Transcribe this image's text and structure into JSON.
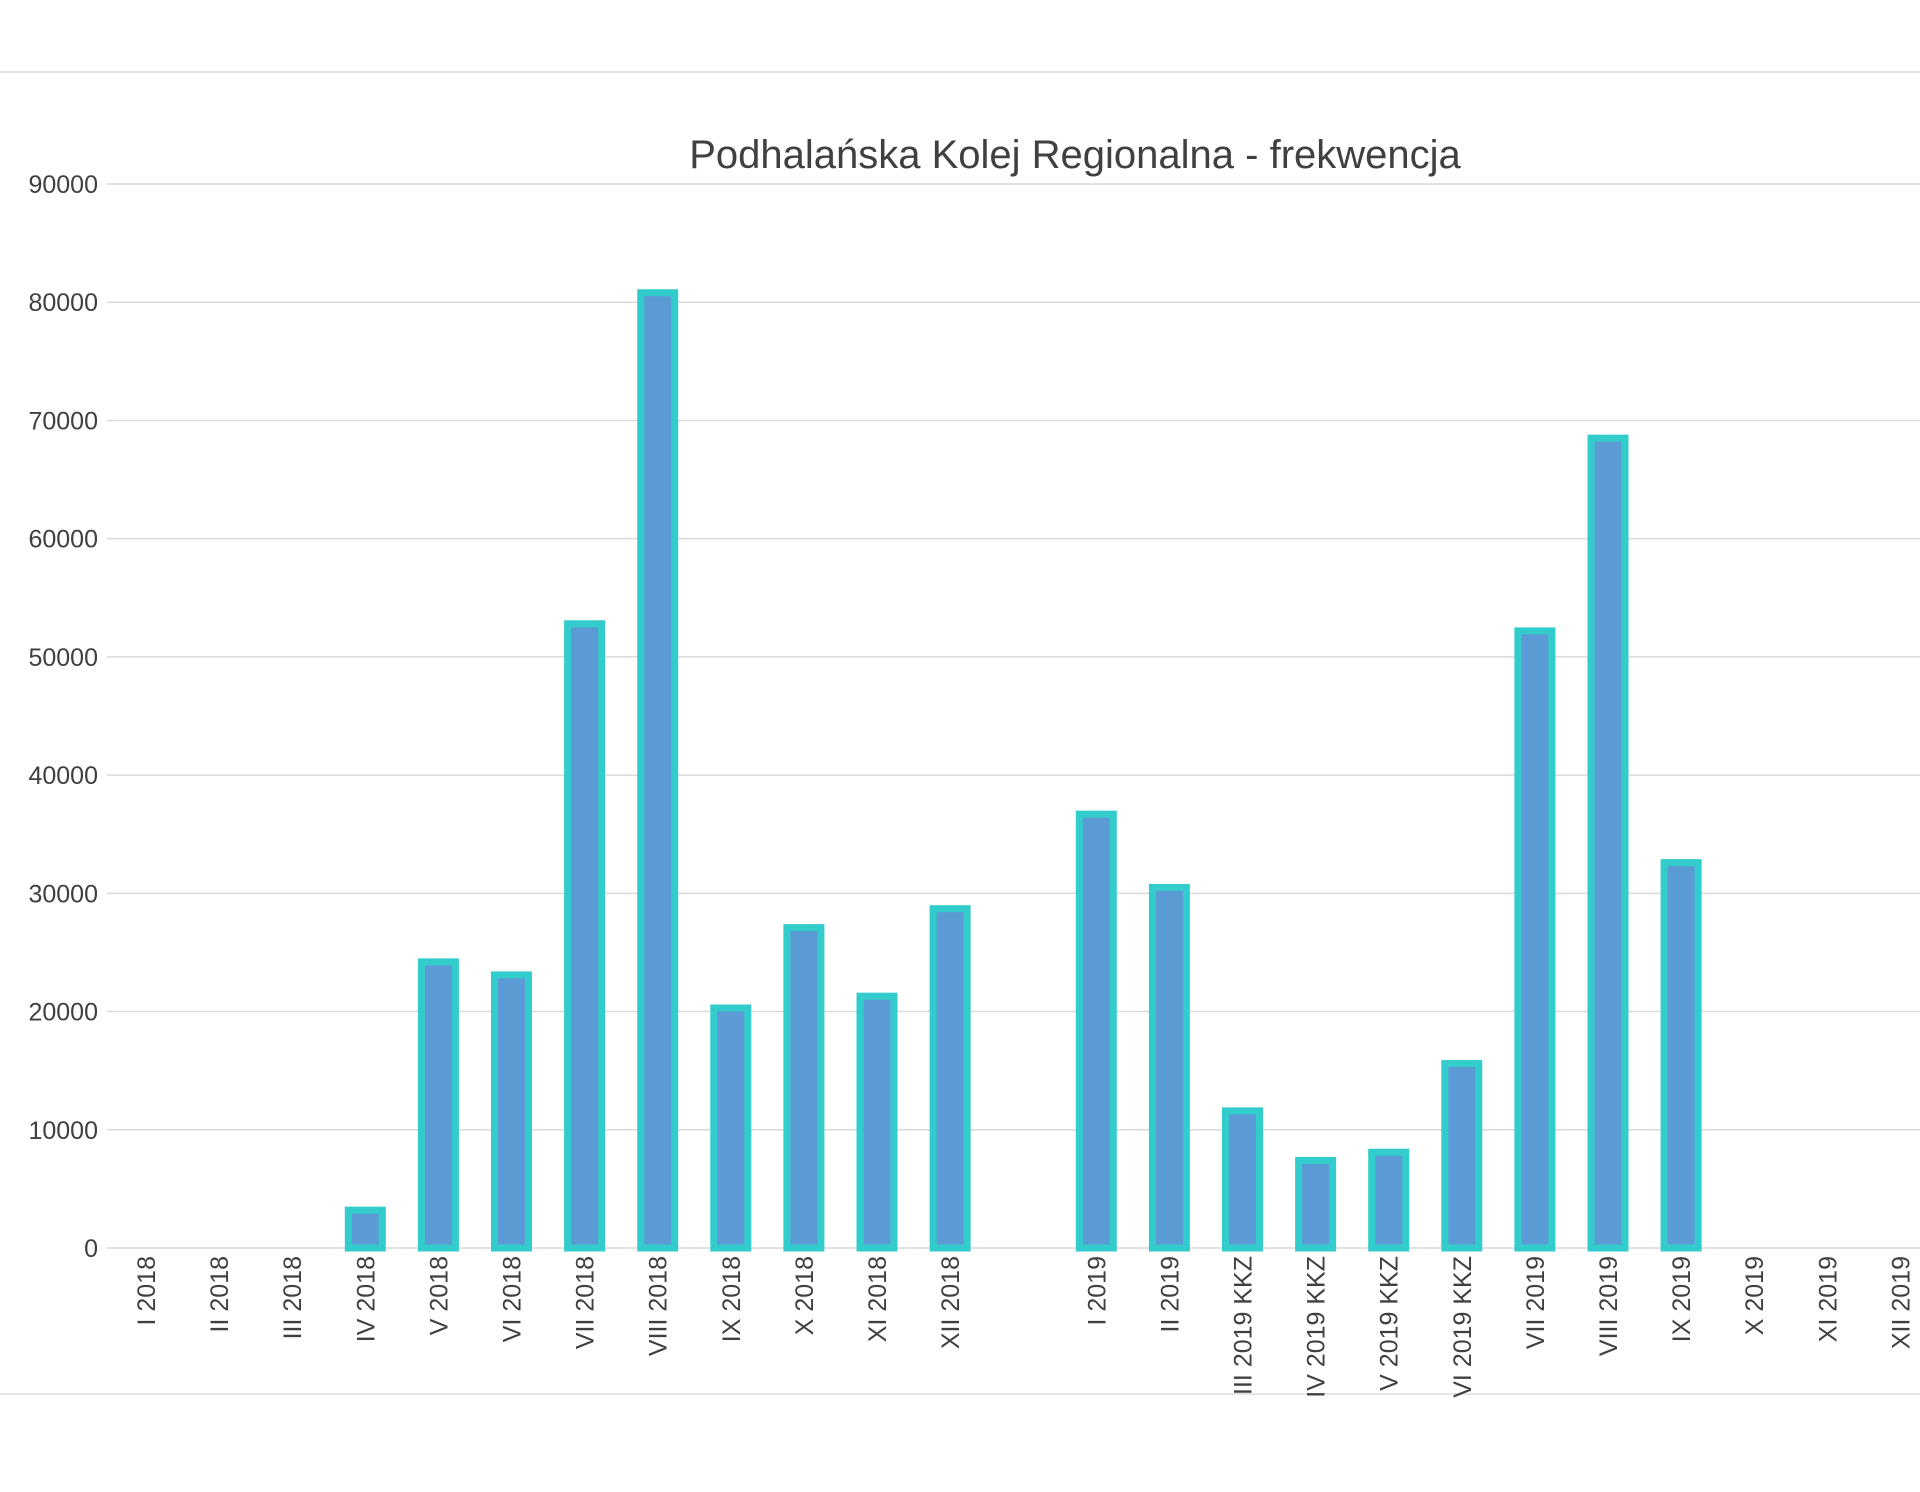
{
  "chart_data": {
    "type": "bar",
    "title": "Podhalańska Kolej Regionalna - frekwencja",
    "xlabel": "",
    "ylabel": "",
    "ylim": [
      0,
      90000
    ],
    "yticks": [
      0,
      10000,
      20000,
      30000,
      40000,
      50000,
      60000,
      70000,
      80000,
      90000
    ],
    "grid": true,
    "legend": "none",
    "categories": [
      "I 2018",
      "II 2018",
      "III 2018",
      "IV 2018",
      "V 2018",
      "VI 2018",
      "VII 2018",
      "VIII 2018",
      "IX 2018",
      "X 2018",
      "XI 2018",
      "XII 2018",
      "",
      "I 2019",
      "II 2019",
      "III 2019 KKZ",
      "IV 2019 KKZ",
      "V 2019 KKZ",
      "VI 2019 KKZ",
      "VII 2019",
      "VIII 2019",
      "IX 2019",
      "X 2019",
      "XI 2019",
      "XII 2019"
    ],
    "values": [
      0,
      0,
      0,
      3200,
      24200,
      23100,
      52800,
      80800,
      20300,
      27100,
      21300,
      28700,
      0,
      36700,
      30500,
      11600,
      7400,
      8100,
      15600,
      52200,
      68500,
      32600,
      0,
      0,
      0
    ],
    "bar_fill": "#5b9bd5",
    "bar_outline": "#33cccc"
  }
}
